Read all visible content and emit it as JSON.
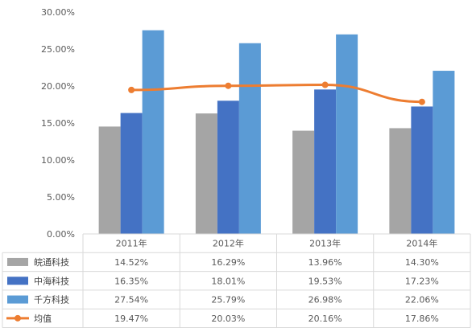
{
  "chart_data": {
    "type": "bar",
    "categories": [
      "2011年",
      "2012年",
      "2013年",
      "2014年"
    ],
    "yticks": [
      "0.00%",
      "5.00%",
      "10.00%",
      "15.00%",
      "20.00%",
      "25.00%",
      "30.00%"
    ],
    "ylim": [
      0,
      30
    ],
    "grid": false,
    "legend": "data-table",
    "series": [
      {
        "name": "皖通科技",
        "kind": "bar",
        "color": "#A5A5A5",
        "values": [
          14.52,
          16.29,
          13.96,
          14.3
        ],
        "labels": [
          "14.52%",
          "16.29%",
          "13.96%",
          "14.30%"
        ]
      },
      {
        "name": "中海科技",
        "kind": "bar",
        "color": "#4472C4",
        "values": [
          16.35,
          18.01,
          19.53,
          17.23
        ],
        "labels": [
          "16.35%",
          "18.01%",
          "19.53%",
          "17.23%"
        ]
      },
      {
        "name": "千方科技",
        "kind": "bar",
        "color": "#5B9BD5",
        "values": [
          27.54,
          25.79,
          26.98,
          22.06
        ],
        "labels": [
          "27.54%",
          "25.79%",
          "26.98%",
          "22.06%"
        ]
      },
      {
        "name": "均值",
        "kind": "line",
        "color": "#ED7D31",
        "values": [
          19.47,
          20.03,
          20.16,
          17.86
        ],
        "labels": [
          "19.47%",
          "20.03%",
          "20.16%",
          "17.86%"
        ]
      }
    ]
  }
}
